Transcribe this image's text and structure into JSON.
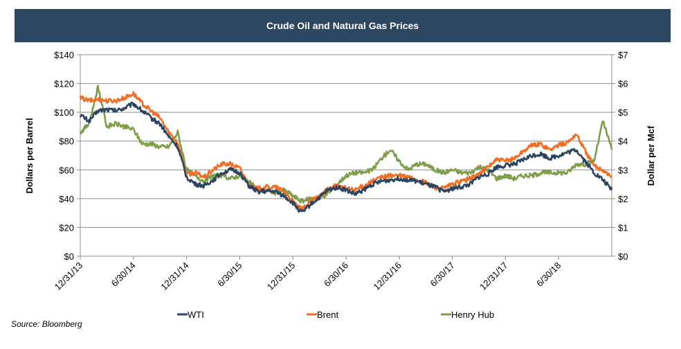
{
  "chart_data": {
    "type": "line",
    "title": "Crude Oil and Natural Gas Prices",
    "ylabel": "Dollars per Barrel",
    "y2label": "Dollar per Mcf",
    "ylim": [
      0,
      140
    ],
    "y2lim": [
      0,
      7
    ],
    "yticks": [
      "$0",
      "$20",
      "$40",
      "$60",
      "$80",
      "$100",
      "$120",
      "$140"
    ],
    "y2ticks": [
      "$0",
      "$1",
      "$2",
      "$3",
      "$4",
      "$5",
      "$6",
      "$7"
    ],
    "xticks": [
      "12/31/13",
      "6/30/14",
      "12/31/14",
      "6/30/15",
      "12/31/15",
      "6/30/16",
      "12/31/16",
      "6/30/17",
      "12/31/17",
      "6/30/18"
    ],
    "x_unit": "months since 12/31/13",
    "xlim": [
      0,
      60
    ],
    "grid": true,
    "legend_position": "bottom",
    "series": [
      {
        "name": "WTI",
        "axis": "left",
        "color": "#2b4460",
        "x": [
          0,
          1,
          2,
          3,
          4,
          5,
          6,
          7,
          8,
          9,
          10,
          11,
          12,
          13,
          14,
          15,
          16,
          17,
          18,
          19,
          20,
          21,
          22,
          23,
          24,
          25,
          26,
          27,
          28,
          29,
          30,
          31,
          32,
          33,
          34,
          35,
          36,
          37,
          38,
          39,
          40,
          41,
          42,
          43,
          44,
          45,
          46,
          47,
          48,
          49,
          50,
          51,
          52,
          53,
          54,
          55,
          56,
          57,
          58,
          59,
          60
        ],
        "values": [
          98,
          94,
          101,
          102,
          101,
          103,
          106,
          101,
          96,
          92,
          83,
          76,
          55,
          50,
          49,
          53,
          58,
          60,
          58,
          49,
          45,
          45,
          45,
          42,
          37,
          30,
          36,
          41,
          46,
          48,
          46,
          43,
          46,
          50,
          52,
          53,
          54,
          53,
          52,
          50,
          48,
          45,
          47,
          48,
          50,
          55,
          57,
          62,
          63,
          64,
          67,
          70,
          71,
          68,
          70,
          72,
          74,
          66,
          58,
          53,
          46
        ]
      },
      {
        "name": "Brent",
        "axis": "left",
        "color": "#f26c21",
        "x": [
          0,
          1,
          2,
          3,
          4,
          5,
          6,
          7,
          8,
          9,
          10,
          11,
          12,
          13,
          14,
          15,
          16,
          17,
          18,
          19,
          20,
          21,
          22,
          23,
          24,
          25,
          26,
          27,
          28,
          29,
          30,
          31,
          32,
          33,
          34,
          35,
          36,
          37,
          38,
          39,
          40,
          41,
          42,
          43,
          44,
          45,
          46,
          47,
          48,
          49,
          50,
          51,
          52,
          53,
          54,
          55,
          56,
          57,
          58,
          59,
          60
        ],
        "values": [
          110,
          108,
          109,
          108,
          108,
          110,
          113,
          106,
          101,
          96,
          86,
          79,
          57,
          58,
          55,
          60,
          64,
          64,
          61,
          50,
          47,
          48,
          48,
          45,
          38,
          32,
          38,
          42,
          47,
          49,
          47,
          46,
          49,
          52,
          55,
          56,
          56,
          55,
          53,
          51,
          48,
          47,
          50,
          52,
          54,
          57,
          62,
          67,
          66,
          68,
          73,
          77,
          78,
          74,
          77,
          79,
          85,
          73,
          63,
          60,
          55
        ]
      },
      {
        "name": "Henry Hub",
        "axis": "right",
        "color": "#7f9e4a",
        "x": [
          0,
          1,
          2,
          3,
          4,
          5,
          6,
          7,
          8,
          9,
          10,
          11,
          12,
          13,
          14,
          15,
          16,
          17,
          18,
          19,
          20,
          21,
          22,
          23,
          24,
          25,
          26,
          27,
          28,
          29,
          30,
          31,
          32,
          33,
          34,
          35,
          36,
          37,
          38,
          39,
          40,
          41,
          42,
          43,
          44,
          45,
          46,
          47,
          48,
          49,
          50,
          51,
          52,
          53,
          54,
          55,
          56,
          57,
          58,
          59,
          60
        ],
        "values": [
          4.3,
          4.6,
          5.9,
          4.5,
          4.6,
          4.5,
          4.4,
          3.9,
          3.9,
          3.8,
          3.8,
          4.3,
          3.0,
          2.8,
          2.6,
          2.8,
          2.8,
          2.7,
          2.8,
          2.6,
          2.3,
          2.3,
          2.2,
          2.3,
          2.1,
          1.9,
          2.0,
          2.0,
          2.2,
          2.5,
          2.8,
          2.9,
          2.9,
          3.0,
          3.4,
          3.7,
          3.3,
          3.0,
          3.2,
          3.2,
          3.0,
          2.9,
          3.0,
          2.9,
          2.9,
          3.1,
          3.0,
          2.7,
          2.8,
          2.7,
          2.8,
          2.8,
          2.9,
          2.9,
          2.9,
          2.9,
          3.2,
          3.2,
          3.3,
          4.7,
          3.7
        ]
      }
    ]
  },
  "header": {
    "title": "Crude Oil and Natural Gas Prices"
  },
  "legend": [
    {
      "label": "WTI",
      "color": "#2b4460"
    },
    {
      "label": "Brent",
      "color": "#f26c21"
    },
    {
      "label": "Henry Hub",
      "color": "#7f9e4a"
    }
  ],
  "footer": {
    "source": "Source: Bloomberg"
  }
}
